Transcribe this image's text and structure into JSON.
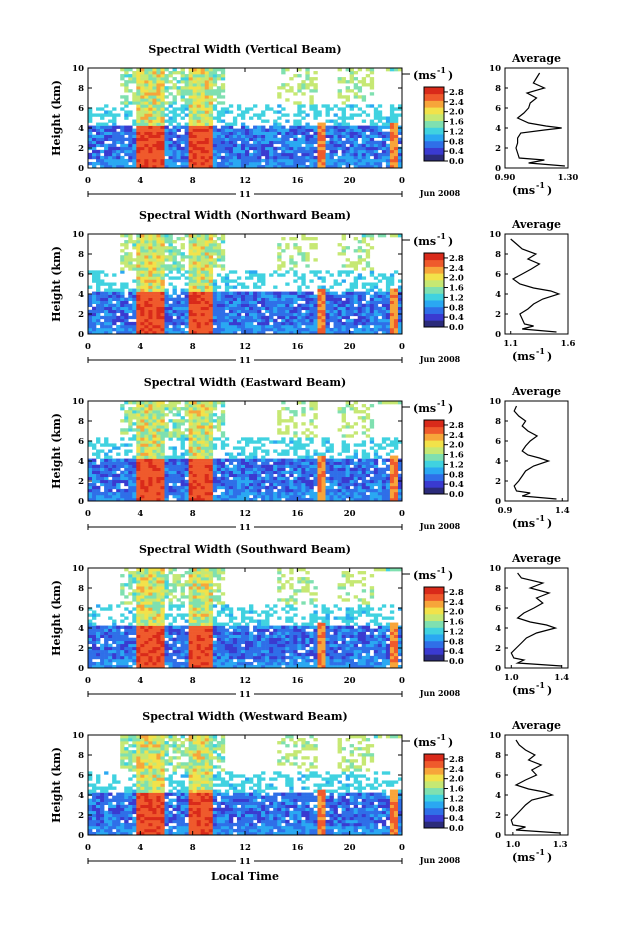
{
  "colors": {
    "scale": [
      "#2b2b7a",
      "#3a3ad0",
      "#2f6fe8",
      "#2aa8f2",
      "#40d2e0",
      "#7fe0b0",
      "#c6e873",
      "#f2e24a",
      "#f7a53a",
      "#ef5a2c",
      "#d92a1a"
    ],
    "line": "#000000",
    "background": "#ffffff"
  },
  "shared": {
    "time_ticks": [
      "0",
      "4",
      "8",
      "12",
      "16",
      "20",
      "0"
    ],
    "day_label": "11",
    "date_label": "Jun 2008",
    "xlabel": "Local Time",
    "ylabel": "Height (km)",
    "height_ticks": [
      "0",
      "2",
      "4",
      "6",
      "8",
      "10"
    ],
    "unit_label": "(ms",
    "unit_exp": "-1",
    "unit_close": ")",
    "avg_title": "Average"
  },
  "chart_data": [
    {
      "type": "heatmap",
      "title": "Spectral Width (Vertical Beam)",
      "xlabel": "Local Time",
      "ylabel": "Height (km)",
      "x_range": [
        0,
        24
      ],
      "ylim": [
        0,
        10
      ],
      "colorbar_ticks": [
        "0.0",
        "0.4",
        "0.8",
        "1.2",
        "1.6",
        "2.0",
        "2.4",
        "2.8"
      ],
      "colorbar_range": [
        0,
        3.0
      ],
      "average": {
        "title": "Average",
        "xlabel": "(ms-1)",
        "xlim": [
          0.9,
          1.3
        ],
        "xticks": [
          "0.90",
          "1.30"
        ],
        "height": [
          0.2,
          0.5,
          0.8,
          1.0,
          1.5,
          2.0,
          2.5,
          3.0,
          3.5,
          3.8,
          4.0,
          4.2,
          4.5,
          5.0,
          5.5,
          6.0,
          6.5,
          7.0,
          7.5,
          8.0,
          8.5,
          9.0,
          9.5
        ],
        "value": [
          1.28,
          1.05,
          1.15,
          0.99,
          0.98,
          0.97,
          0.98,
          0.98,
          1.0,
          1.15,
          1.26,
          1.16,
          1.05,
          0.98,
          1.02,
          1.05,
          1.06,
          1.1,
          1.04,
          1.15,
          1.08,
          1.1,
          1.12
        ]
      }
    },
    {
      "type": "heatmap",
      "title": "Spectral Width (Northward Beam)",
      "xlabel": "Local Time",
      "ylabel": "Height (km)",
      "x_range": [
        0,
        24
      ],
      "ylim": [
        0,
        10
      ],
      "colorbar_ticks": [
        "0.0",
        "0.4",
        "0.8",
        "1.2",
        "1.6",
        "2.0",
        "2.4",
        "2.8"
      ],
      "colorbar_range": [
        0,
        3.0
      ],
      "average": {
        "title": "Average",
        "xlabel": "(ms-1)",
        "xlim": [
          1.05,
          1.6
        ],
        "xticks": [
          "1.1",
          "1.6"
        ],
        "height": [
          0.2,
          0.5,
          0.8,
          1.0,
          1.5,
          2.0,
          2.5,
          3.0,
          3.5,
          4.0,
          4.3,
          4.6,
          5.0,
          5.5,
          6.0,
          6.5,
          7.0,
          7.5,
          8.0,
          8.5,
          9.0,
          9.5
        ],
        "value": [
          1.5,
          1.2,
          1.3,
          1.22,
          1.2,
          1.18,
          1.25,
          1.3,
          1.38,
          1.52,
          1.45,
          1.3,
          1.18,
          1.12,
          1.2,
          1.28,
          1.35,
          1.25,
          1.32,
          1.2,
          1.15,
          1.1
        ]
      }
    },
    {
      "type": "heatmap",
      "title": "Spectral Width (Eastward Beam)",
      "xlabel": "Local Time",
      "ylabel": "Height (km)",
      "x_range": [
        0,
        24
      ],
      "ylim": [
        0,
        10
      ],
      "colorbar_ticks": [
        "0.0",
        "0.4",
        "0.8",
        "1.2",
        "1.6",
        "2.0",
        "2.4",
        "2.8"
      ],
      "colorbar_range": [
        0,
        3.0
      ],
      "average": {
        "title": "Average",
        "xlabel": "(ms-1)",
        "xlim": [
          0.9,
          1.45
        ],
        "xticks": [
          "0.9",
          "1.4"
        ],
        "height": [
          0.2,
          0.5,
          0.8,
          1.0,
          1.5,
          2.0,
          2.5,
          3.0,
          3.5,
          4.0,
          4.3,
          4.6,
          5.0,
          5.5,
          6.0,
          6.5,
          7.0,
          7.5,
          8.0,
          8.5,
          9.0,
          9.5
        ],
        "value": [
          1.35,
          1.05,
          1.12,
          1.0,
          0.98,
          1.02,
          1.05,
          1.08,
          1.15,
          1.28,
          1.2,
          1.1,
          1.05,
          1.08,
          1.12,
          1.18,
          1.1,
          1.05,
          1.08,
          1.02,
          0.98,
          1.0
        ]
      }
    },
    {
      "type": "heatmap",
      "title": "Spectral Width (Southward Beam)",
      "xlabel": "Local Time",
      "ylabel": "Height (km)",
      "x_range": [
        0,
        24
      ],
      "ylim": [
        0,
        10
      ],
      "colorbar_ticks": [
        "0.0",
        "0.4",
        "0.8",
        "1.2",
        "1.6",
        "2.0",
        "2.4",
        "2.8"
      ],
      "colorbar_range": [
        0,
        3.0
      ],
      "average": {
        "title": "Average",
        "xlabel": "(ms-1)",
        "xlim": [
          0.95,
          1.45
        ],
        "xticks": [
          "1.0",
          "1.4"
        ],
        "height": [
          0.2,
          0.5,
          0.8,
          1.0,
          1.5,
          2.0,
          2.5,
          3.0,
          3.5,
          4.0,
          4.3,
          4.6,
          5.0,
          5.5,
          6.0,
          6.5,
          7.0,
          7.5,
          8.0,
          8.5,
          9.0,
          9.5
        ],
        "value": [
          1.4,
          1.05,
          1.1,
          1.02,
          1.0,
          1.04,
          1.08,
          1.12,
          1.2,
          1.35,
          1.28,
          1.15,
          1.05,
          1.1,
          1.18,
          1.25,
          1.2,
          1.3,
          1.15,
          1.25,
          1.08,
          1.05
        ]
      }
    },
    {
      "type": "heatmap",
      "title": "Spectral Width (Westward Beam)",
      "xlabel": "Local Time",
      "ylabel": "Height (km)",
      "x_range": [
        0,
        24
      ],
      "ylim": [
        0,
        10
      ],
      "colorbar_ticks": [
        "0.0",
        "0.4",
        "0.8",
        "1.2",
        "1.6",
        "2.0",
        "2.4",
        "2.8"
      ],
      "colorbar_range": [
        0,
        3.0
      ],
      "average": {
        "title": "Average",
        "xlabel": "(ms-1)",
        "xlim": [
          0.95,
          1.35
        ],
        "xticks": [
          "1.0",
          "1.3"
        ],
        "height": [
          0.2,
          0.5,
          0.8,
          1.0,
          1.5,
          2.0,
          2.5,
          3.0,
          3.5,
          4.0,
          4.3,
          4.6,
          5.0,
          5.5,
          6.0,
          6.5,
          7.0,
          7.5,
          8.0,
          8.5,
          9.0,
          9.5
        ],
        "value": [
          1.3,
          1.02,
          1.08,
          1.0,
          0.99,
          1.02,
          1.05,
          1.08,
          1.12,
          1.25,
          1.2,
          1.1,
          1.02,
          1.08,
          1.15,
          1.12,
          1.18,
          1.1,
          1.14,
          1.08,
          1.04,
          1.02
        ]
      }
    }
  ]
}
